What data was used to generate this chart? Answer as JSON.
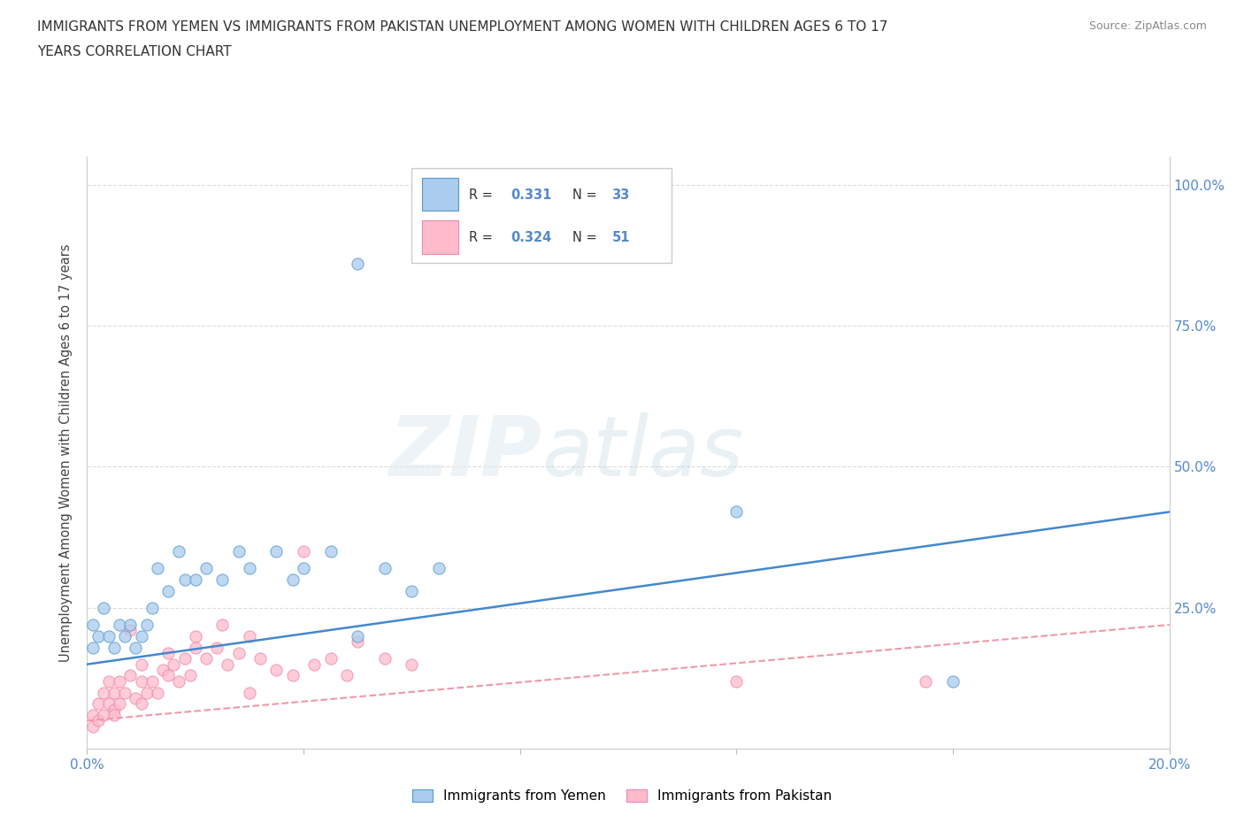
{
  "title_line1": "IMMIGRANTS FROM YEMEN VS IMMIGRANTS FROM PAKISTAN UNEMPLOYMENT AMONG WOMEN WITH CHILDREN AGES 6 TO 17",
  "title_line2": "YEARS CORRELATION CHART",
  "source_text": "Source: ZipAtlas.com",
  "ylabel": "Unemployment Among Women with Children Ages 6 to 17 years",
  "xlim": [
    0.0,
    0.2
  ],
  "ylim": [
    0.0,
    1.05
  ],
  "ytick_positions": [
    0.0,
    0.25,
    0.5,
    0.75,
    1.0
  ],
  "ytick_labels": [
    "",
    "25.0%",
    "50.0%",
    "75.0%",
    "100.0%"
  ],
  "xtick_positions": [
    0.0,
    0.04,
    0.08,
    0.12,
    0.16,
    0.2
  ],
  "xtick_labels": [
    "0.0%",
    "",
    "",
    "",
    "",
    "20.0%"
  ],
  "R_yemen": 0.331,
  "N_yemen": 33,
  "R_pakistan": 0.324,
  "N_pakistan": 51,
  "color_yemen": "#aaccee",
  "color_pakistan": "#ffbbcc",
  "edge_yemen": "#5599cc",
  "edge_pakistan": "#ee88aa",
  "line_color_yemen": "#4488cc",
  "line_color_pakistan": "#ee99aa",
  "watermark_zip": "ZIP",
  "watermark_atlas": "atlas",
  "yemen_x": [
    0.001,
    0.001,
    0.002,
    0.003,
    0.004,
    0.005,
    0.006,
    0.007,
    0.008,
    0.009,
    0.01,
    0.011,
    0.012,
    0.013,
    0.015,
    0.017,
    0.018,
    0.02,
    0.022,
    0.025,
    0.028,
    0.03,
    0.035,
    0.038,
    0.04,
    0.045,
    0.05,
    0.055,
    0.06,
    0.065,
    0.05,
    0.12,
    0.16
  ],
  "yemen_y": [
    0.18,
    0.22,
    0.2,
    0.25,
    0.2,
    0.18,
    0.22,
    0.2,
    0.22,
    0.18,
    0.2,
    0.22,
    0.25,
    0.32,
    0.28,
    0.35,
    0.3,
    0.3,
    0.32,
    0.3,
    0.35,
    0.32,
    0.35,
    0.3,
    0.32,
    0.35,
    0.2,
    0.32,
    0.28,
    0.32,
    0.86,
    0.42,
    0.12
  ],
  "pakistan_x": [
    0.001,
    0.001,
    0.002,
    0.002,
    0.003,
    0.003,
    0.004,
    0.004,
    0.005,
    0.005,
    0.006,
    0.006,
    0.007,
    0.008,
    0.009,
    0.01,
    0.01,
    0.011,
    0.012,
    0.013,
    0.014,
    0.015,
    0.016,
    0.017,
    0.018,
    0.019,
    0.02,
    0.022,
    0.024,
    0.026,
    0.028,
    0.03,
    0.032,
    0.035,
    0.038,
    0.04,
    0.042,
    0.045,
    0.048,
    0.05,
    0.055,
    0.06,
    0.03,
    0.025,
    0.02,
    0.015,
    0.01,
    0.008,
    0.12,
    0.155,
    0.005
  ],
  "pakistan_y": [
    0.04,
    0.06,
    0.05,
    0.08,
    0.06,
    0.1,
    0.08,
    0.12,
    0.07,
    0.1,
    0.12,
    0.08,
    0.1,
    0.13,
    0.09,
    0.12,
    0.08,
    0.1,
    0.12,
    0.1,
    0.14,
    0.13,
    0.15,
    0.12,
    0.16,
    0.13,
    0.2,
    0.16,
    0.18,
    0.15,
    0.17,
    0.1,
    0.16,
    0.14,
    0.13,
    0.35,
    0.15,
    0.16,
    0.13,
    0.19,
    0.16,
    0.15,
    0.2,
    0.22,
    0.18,
    0.17,
    0.15,
    0.21,
    0.12,
    0.12,
    0.06
  ]
}
